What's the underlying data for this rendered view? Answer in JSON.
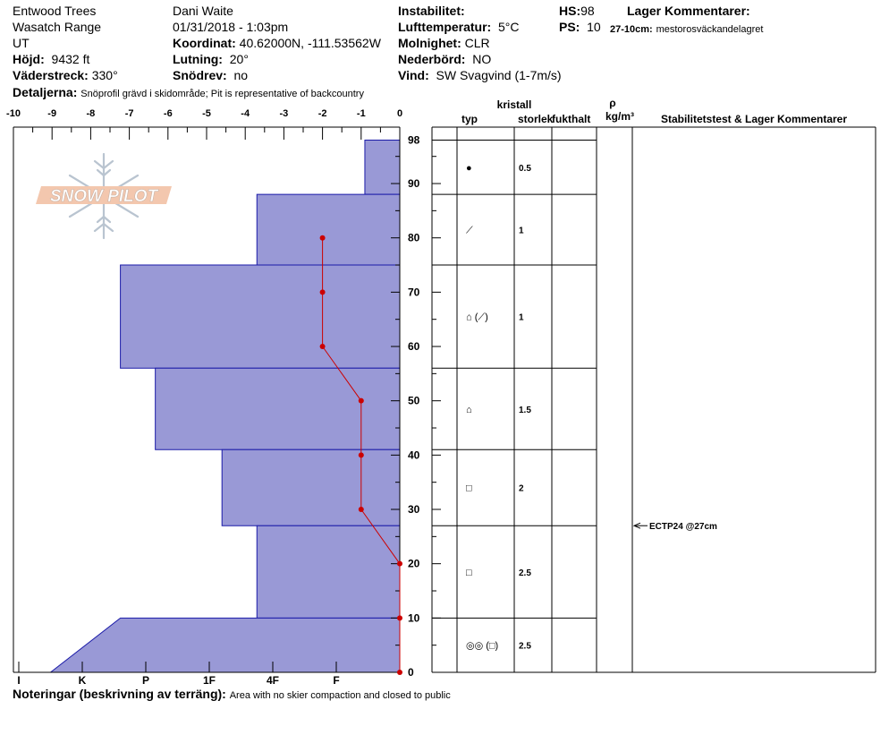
{
  "header": {
    "location": "Entwood Trees",
    "range": "Wasatch Range",
    "state": "UT",
    "elevation_label": "Höjd:",
    "elevation_value": "9432 ft",
    "aspect_label": "Väderstreck:",
    "aspect_value": "330°",
    "observer": "Dani Waite",
    "datetime": "01/31/2018 - 1:03pm",
    "coord_label": "Koordinat:",
    "coord_value": "40.62000N, -111.53562W",
    "slope_label": "Lutning:",
    "slope_value": "20°",
    "drift_label": "Snödrev:",
    "drift_value": "no",
    "instability_label": "Instabilitet:",
    "airtemp_label": "Lufttemperatur:",
    "airtemp_value": "5°C",
    "sky_label": "Molnighet:",
    "sky_value": "CLR",
    "precip_label": "Nederbörd:",
    "precip_value": "NO",
    "wind_label": "Vind:",
    "wind_value": "SW  Svagvind (1-7m/s)",
    "hs_label": "HS:",
    "hs_value": "98",
    "ps_label": "PS:",
    "ps_value": "10",
    "layer_comments_label": "Lager Kommentarer:",
    "layer_comment_depth": "27-10cm:",
    "layer_comment_text": "mestorosväckandelagret",
    "details_label": "Detaljerna:",
    "details_text": "Snöprofil grävd i skidområde;  Pit is representative of backcountry"
  },
  "logo": {
    "text": "SNOW PILOT"
  },
  "columns": {
    "crystal": "kristall",
    "type": "typ",
    "size": "storlek",
    "moisture": "fukthalt",
    "rho": "ρ",
    "density": "kg/m³",
    "stability": "Stabilitetstest & Lager Kommentarer"
  },
  "footer": {
    "notes_label": "Noteringar (beskrivning av terräng):",
    "notes_text": "Area with no skier compaction and closed to public"
  },
  "chart_data": {
    "type": "area",
    "x_top_ticks": [
      "-10",
      "-9",
      "-8",
      "-7",
      "-6",
      "-5",
      "-4",
      "-3",
      "-2",
      "-1",
      "0"
    ],
    "x_temp_range": [
      -10,
      0
    ],
    "y_ticks": [
      "0",
      "10",
      "20",
      "30",
      "40",
      "50",
      "60",
      "70",
      "80",
      "90",
      "98"
    ],
    "y_range": [
      0,
      98
    ],
    "hardness_scale": [
      "I",
      "K",
      "P",
      "1F",
      "4F",
      "F"
    ],
    "hardness_values": {
      "F": 1,
      "4F": 2,
      "1F": 3,
      "P": 4,
      "K": 5,
      "I": 6
    },
    "layers": [
      {
        "top": 98,
        "bottom": 88,
        "hardness": 0.55,
        "grain_symbol": "●",
        "size": "0.5"
      },
      {
        "top": 88,
        "bottom": 75,
        "hardness": 2.25,
        "grain_symbol": "⟋",
        "size": "1"
      },
      {
        "top": 75,
        "bottom": 56,
        "hardness": 4.4,
        "grain_symbol": "⌂ (⟋)",
        "size": "1"
      },
      {
        "top": 56,
        "bottom": 41,
        "hardness": 3.85,
        "grain_symbol": "⌂",
        "size": "1.5"
      },
      {
        "top": 41,
        "bottom": 27,
        "hardness": 2.8,
        "grain_symbol": "□",
        "size": "2"
      },
      {
        "top": 27,
        "bottom": 10,
        "hardness": 2.25,
        "grain_symbol": "□",
        "size": "2.5"
      },
      {
        "top": 10,
        "bottom": 0,
        "hardness": 4.4,
        "hardness_bottom": 5.5,
        "grain_symbol": "◎◎ (□)",
        "size": "2.5"
      }
    ],
    "temperature_profile": [
      {
        "depth": 80,
        "temp": -2
      },
      {
        "depth": 70,
        "temp": -2
      },
      {
        "depth": 60,
        "temp": -2
      },
      {
        "depth": 50,
        "temp": -1
      },
      {
        "depth": 40,
        "temp": -1
      },
      {
        "depth": 30,
        "temp": -1
      },
      {
        "depth": 20,
        "temp": 0
      },
      {
        "depth": 10,
        "temp": 0
      },
      {
        "depth": 0,
        "temp": 0
      }
    ],
    "stability_tests": [
      {
        "depth": 27,
        "label": "ECTP24 @27cm"
      }
    ],
    "colors": {
      "layer_fill": "#9999d6",
      "layer_stroke": "#1a1aa8",
      "temp_line": "#cc0000"
    }
  }
}
